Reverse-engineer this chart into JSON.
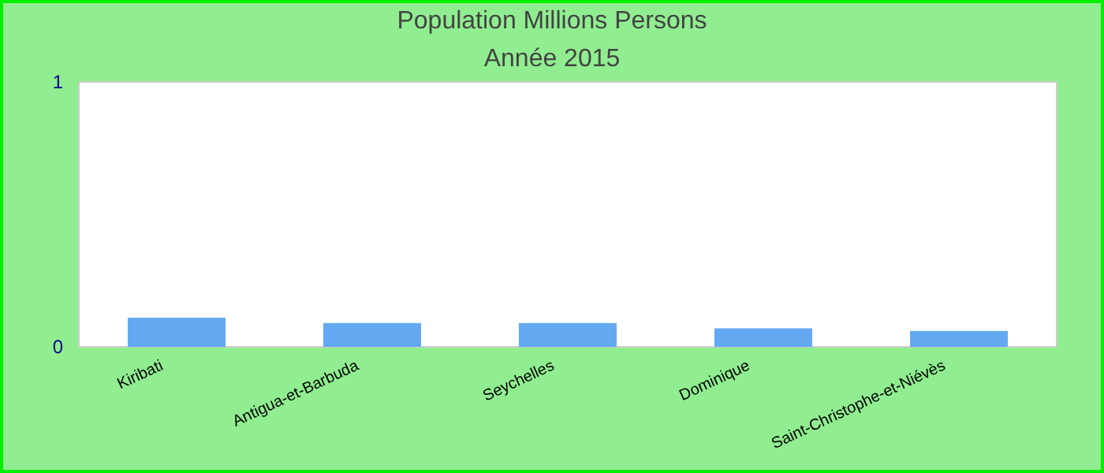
{
  "chart_data": {
    "type": "bar",
    "title": "Population Millions Persons",
    "subtitle": "Année 2015",
    "categories": [
      "Kiribati",
      "Antigua-et-Barbuda",
      "Seychelles",
      "Dominique",
      "Saint-Christophe-et-Niévès"
    ],
    "values": [
      0.11,
      0.09,
      0.09,
      0.07,
      0.06
    ],
    "color": "#62a9f2",
    "ylim": [
      0,
      1
    ],
    "yticks": [
      0,
      1
    ]
  }
}
